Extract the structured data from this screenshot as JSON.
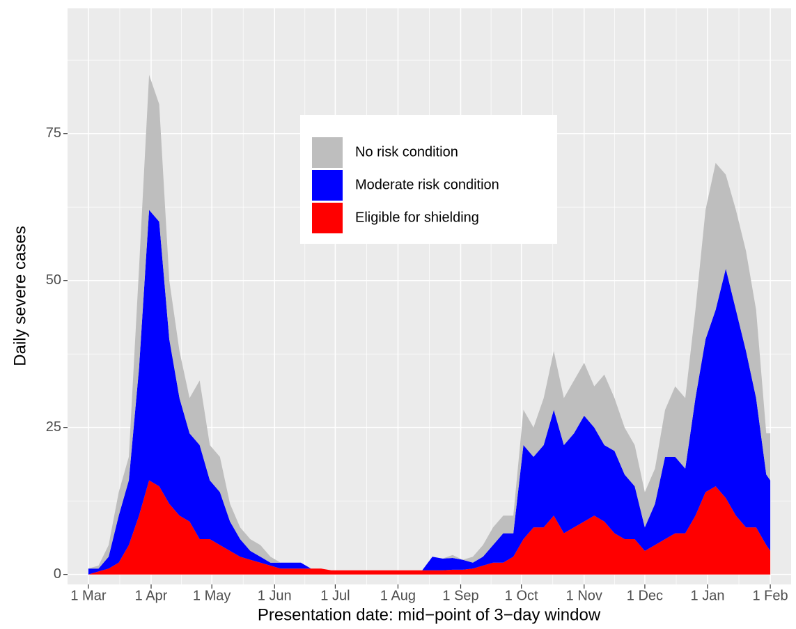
{
  "chart_data": {
    "type": "stacked_area",
    "x_label": "Presentation date: mid−point of 3−day window",
    "y_label": "Daily severe cases",
    "x": [
      0,
      5,
      10,
      15,
      20,
      25,
      30,
      35,
      40,
      45,
      50,
      55,
      60,
      65,
      70,
      75,
      80,
      85,
      90,
      95,
      100,
      105,
      110,
      115,
      120,
      125,
      130,
      135,
      140,
      145,
      150,
      155,
      160,
      165,
      170,
      175,
      180,
      185,
      190,
      195,
      200,
      205,
      210,
      215,
      220,
      225,
      230,
      235,
      240,
      245,
      250,
      255,
      260,
      265,
      270,
      275,
      280,
      285,
      290,
      295,
      300,
      305,
      310,
      315,
      320,
      325,
      330,
      335,
      337
    ],
    "series": [
      {
        "name": "No risk condition",
        "color": "#bebebe",
        "values": [
          0,
          0.5,
          2,
          4,
          4,
          17,
          23,
          20,
          10,
          8,
          6,
          11,
          6,
          6,
          3,
          2,
          2,
          2,
          1,
          0,
          0,
          0,
          0,
          0,
          0,
          0,
          0,
          0,
          0,
          0,
          0,
          0,
          0,
          0,
          0,
          0,
          0.5,
          0,
          1,
          2,
          3,
          3,
          3,
          6,
          5,
          8,
          10,
          8,
          9,
          9,
          7,
          12,
          9,
          8,
          7,
          6,
          6,
          8,
          12,
          12,
          15,
          22,
          25,
          16,
          17,
          17,
          15,
          7,
          8
        ]
      },
      {
        "name": "Moderate risk condition",
        "color": "#0000ff",
        "values": [
          1,
          0.5,
          2,
          8,
          11,
          25,
          46,
          45,
          28,
          20,
          15,
          16,
          10,
          9,
          5,
          3,
          1.5,
          1,
          0.5,
          1,
          1,
          1,
          0,
          0,
          0,
          0,
          0,
          0,
          0,
          0,
          0,
          0,
          0,
          0,
          2.3,
          2,
          2,
          1.7,
          1,
          1.5,
          3,
          5,
          4,
          16,
          12,
          14,
          18,
          15,
          16,
          18,
          15,
          13,
          14,
          11,
          9,
          4,
          7,
          14,
          13,
          11,
          20,
          26,
          30,
          39,
          35,
          30,
          22,
          12,
          12
        ]
      },
      {
        "name": "Eligible for shielding",
        "color": "#ff0000",
        "values": [
          0,
          0.5,
          1,
          2,
          5,
          10,
          16,
          15,
          12,
          10,
          9,
          6,
          6,
          5,
          4,
          3,
          2.5,
          2,
          1.5,
          1,
          1,
          1,
          1,
          1,
          0.7,
          0.7,
          0.7,
          0.7,
          0.7,
          0.7,
          0.7,
          0.7,
          0.7,
          0.7,
          0.7,
          0.7,
          0.8,
          0.8,
          1,
          1.5,
          2,
          2,
          3,
          6,
          8,
          8,
          10,
          7,
          8,
          9,
          10,
          9,
          7,
          6,
          6,
          4,
          5,
          6,
          7,
          7,
          10,
          14,
          15,
          13,
          10,
          8,
          8,
          5,
          4
        ]
      }
    ],
    "xlim": [
      -10.3,
      347.3
    ],
    "xticks": [
      {
        "value": 0,
        "label": "1 Mar"
      },
      {
        "value": 31,
        "label": "1 Apr"
      },
      {
        "value": 61,
        "label": "1 May"
      },
      {
        "value": 92,
        "label": "1 Jun"
      },
      {
        "value": 122,
        "label": "1 Jul"
      },
      {
        "value": 153,
        "label": "1 Aug"
      },
      {
        "value": 184,
        "label": "1 Sep"
      },
      {
        "value": 214,
        "label": "1 Oct"
      },
      {
        "value": 245,
        "label": "1 Nov"
      },
      {
        "value": 275,
        "label": "1 Dec"
      },
      {
        "value": 306,
        "label": "1 Jan"
      },
      {
        "value": 337,
        "label": "1 Feb"
      }
    ],
    "ylim": [
      -1.7,
      96.3
    ],
    "yticks": [
      0,
      25,
      50,
      75
    ],
    "grid": true
  }
}
